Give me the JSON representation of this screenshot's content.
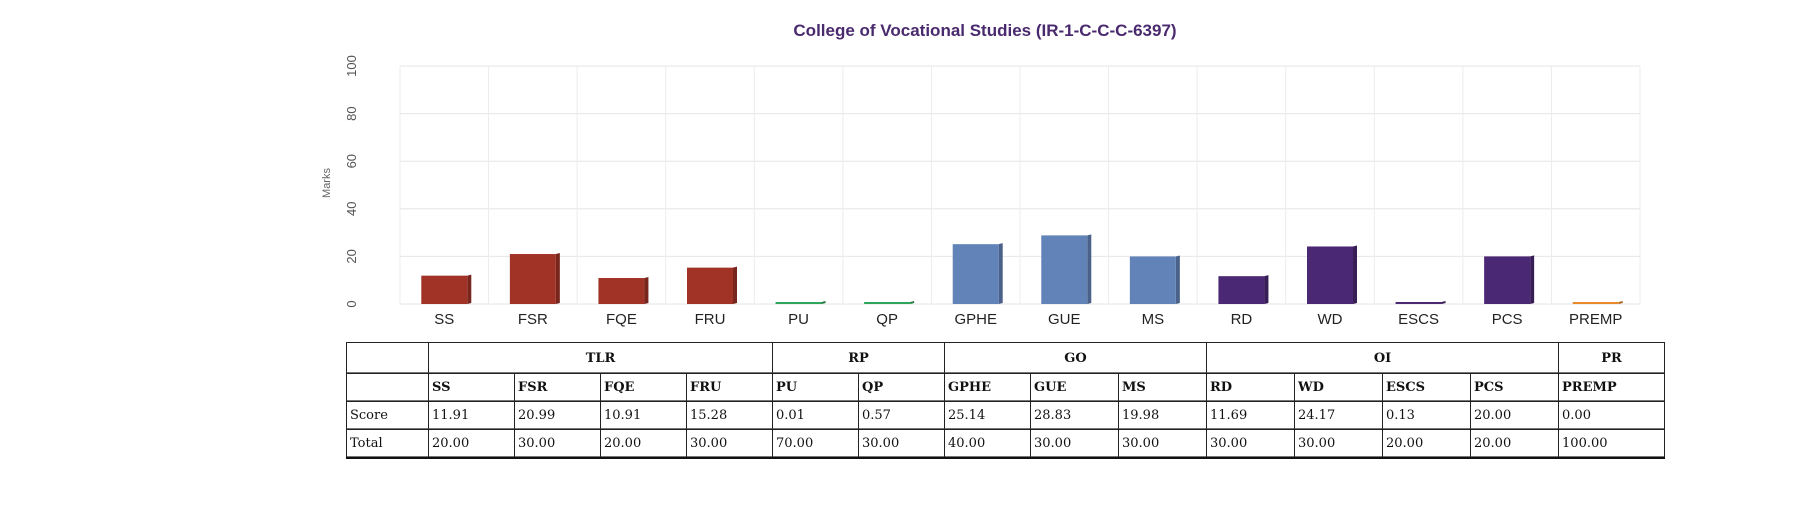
{
  "chart_data": {
    "type": "bar",
    "title": "College of Vocational Studies (IR-1-C-C-C-6397)",
    "ylabel": "Marks",
    "ylim": [
      0,
      100
    ],
    "yticks": [
      0,
      20,
      40,
      60,
      80,
      100
    ],
    "grid": true,
    "categories": [
      "SS",
      "FSR",
      "FQE",
      "FRU",
      "PU",
      "QP",
      "GPHE",
      "GUE",
      "MS",
      "RD",
      "WD",
      "ESCS",
      "PCS",
      "PREMP"
    ],
    "values": [
      11.91,
      20.99,
      10.91,
      15.28,
      0.01,
      0.57,
      25.14,
      28.83,
      19.98,
      11.69,
      24.17,
      0.13,
      20.0,
      0.0
    ],
    "bar_colors": [
      "#a03226",
      "#a03226",
      "#a03226",
      "#a03226",
      "#2ea55a",
      "#2ea55a",
      "#6283b8",
      "#6283b8",
      "#6283b8",
      "#4b2874",
      "#4b2874",
      "#4b2874",
      "#4b2874",
      "#e8892c"
    ]
  },
  "table": {
    "groups": [
      {
        "label": "TLR",
        "span": 4
      },
      {
        "label": "RP",
        "span": 2
      },
      {
        "label": "GO",
        "span": 3
      },
      {
        "label": "OI",
        "span": 4
      },
      {
        "label": "PR",
        "span": 1
      }
    ],
    "headers": [
      "SS",
      "FSR",
      "FQE",
      "FRU",
      "PU",
      "QP",
      "GPHE",
      "GUE",
      "MS",
      "RD",
      "WD",
      "ESCS",
      "PCS",
      "PREMP"
    ],
    "rows": [
      {
        "label": "Score",
        "values": [
          "11.91",
          "20.99",
          "10.91",
          "15.28",
          "0.01",
          "0.57",
          "25.14",
          "28.83",
          "19.98",
          "11.69",
          "24.17",
          "0.13",
          "20.00",
          "0.00"
        ]
      },
      {
        "label": "Total",
        "values": [
          "20.00",
          "30.00",
          "20.00",
          "30.00",
          "70.00",
          "30.00",
          "40.00",
          "30.00",
          "30.00",
          "30.00",
          "30.00",
          "20.00",
          "20.00",
          "100.00"
        ]
      }
    ]
  }
}
